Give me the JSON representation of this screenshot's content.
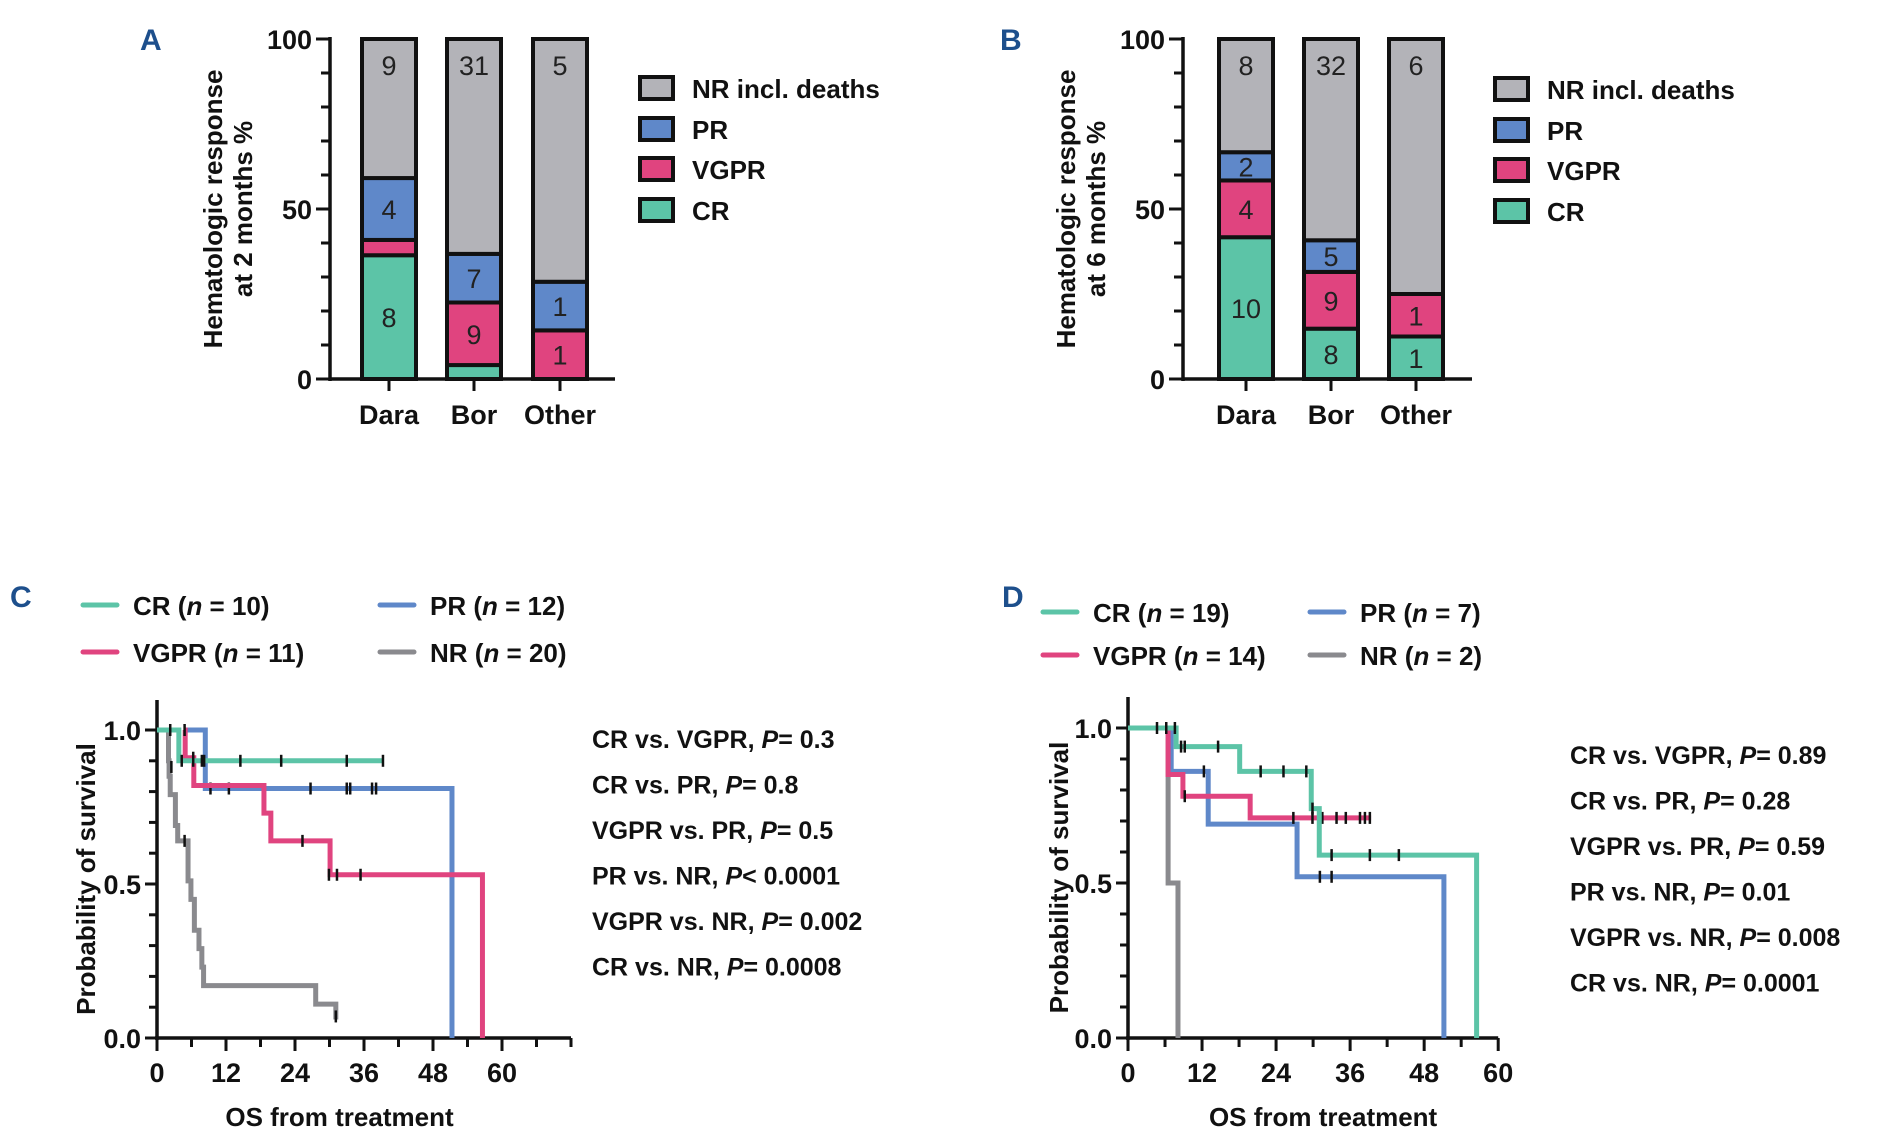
{
  "panels": {
    "A": {
      "letter": "A"
    },
    "B": {
      "letter": "B"
    },
    "C": {
      "letter": "C"
    },
    "D": {
      "letter": "D"
    }
  },
  "colors": {
    "NR": "#b3b3b8",
    "PR": "#5f88c9",
    "VGPR": "#e0447f",
    "CR": "#5cc4a7",
    "NR_line": "#8a8a8e",
    "letter": "#1d4f8c"
  },
  "chart_data": [
    {
      "id": "A",
      "type": "bar",
      "stacked": true,
      "title": "",
      "xlabel": "",
      "ylabel": "Hematologic response at 2 months %",
      "ylabel_lines": [
        "Hematologic response",
        "at 2 months %"
      ],
      "ylim": [
        0,
        100
      ],
      "yticks": [
        0,
        50,
        100
      ],
      "y_minor_step": 10,
      "categories": [
        "Dara",
        "Bor",
        "Other"
      ],
      "series": [
        {
          "name": "CR",
          "key": "CR",
          "values": [
            36.4,
            4.1,
            0
          ],
          "labels": [
            "8",
            "",
            ""
          ]
        },
        {
          "name": "VGPR",
          "key": "VGPR",
          "values": [
            4.5,
            18.4,
            14.3
          ],
          "labels": [
            "",
            "9",
            "1"
          ]
        },
        {
          "name": "PR",
          "key": "PR",
          "values": [
            18.2,
            14.3,
            14.3
          ],
          "labels": [
            "4",
            "7",
            "1"
          ]
        },
        {
          "name": "NR incl. deaths",
          "key": "NR",
          "values": [
            40.9,
            63.2,
            71.4
          ],
          "labels": [
            "9",
            "31",
            "5"
          ]
        }
      ],
      "legend": [
        "NR incl. deaths",
        "PR",
        "VGPR",
        "CR"
      ],
      "legend_position": "right"
    },
    {
      "id": "B",
      "type": "bar",
      "stacked": true,
      "title": "",
      "xlabel": "",
      "ylabel": "Hematologic response at 6 months %",
      "ylabel_lines": [
        "Hematologic response",
        "at 6 months %"
      ],
      "ylim": [
        0,
        100
      ],
      "yticks": [
        0,
        50,
        100
      ],
      "y_minor_step": 10,
      "categories": [
        "Dara",
        "Bor",
        "Other"
      ],
      "series": [
        {
          "name": "CR",
          "key": "CR",
          "values": [
            41.7,
            14.8,
            12.5
          ],
          "labels": [
            "10",
            "8",
            "1"
          ]
        },
        {
          "name": "VGPR",
          "key": "VGPR",
          "values": [
            16.7,
            16.7,
            12.5
          ],
          "labels": [
            "4",
            "9",
            "1"
          ]
        },
        {
          "name": "PR",
          "key": "PR",
          "values": [
            8.3,
            9.3,
            0
          ],
          "labels": [
            "2",
            "5",
            ""
          ]
        },
        {
          "name": "NR incl. deaths",
          "key": "NR",
          "values": [
            33.3,
            59.2,
            75.0
          ],
          "labels": [
            "8",
            "32",
            "6"
          ]
        }
      ],
      "legend": [
        "NR incl. deaths",
        "PR",
        "VGPR",
        "CR"
      ],
      "legend_position": "right"
    },
    {
      "id": "C",
      "type": "line",
      "subtype": "kaplan-meier step",
      "title": "",
      "xlabel": "OS from treatment",
      "ylabel": "Probability of survival",
      "xlim": [
        0,
        72
      ],
      "xticks": [
        0,
        12,
        24,
        36,
        48,
        60
      ],
      "x_minor_step": 6,
      "ylim": [
        0,
        1.1
      ],
      "yticks": [
        "0.0",
        "0.5",
        "1.0"
      ],
      "y_minor_step": 0.1,
      "legend_position": "top",
      "series": [
        {
          "name": "CR",
          "n": "10",
          "key": "CR",
          "steps": [
            [
              0,
              1.0
            ],
            [
              3.8,
              0.9
            ],
            [
              39.4,
              0.9
            ]
          ],
          "censors": [
            [
              2.3,
              1.0
            ],
            [
              4.8,
              1.0
            ],
            [
              4.3,
              0.9
            ],
            [
              6.3,
              0.9
            ],
            [
              7.8,
              0.9
            ],
            [
              8.2,
              0.9
            ],
            [
              14.5,
              0.9
            ],
            [
              21.6,
              0.9
            ],
            [
              33.0,
              0.9
            ],
            [
              39.3,
              0.9
            ]
          ]
        },
        {
          "name": "VGPR",
          "n": "11",
          "key": "VGPR",
          "steps": [
            [
              4.7,
              1.0
            ],
            [
              4.9,
              0.91
            ],
            [
              6.4,
              0.82
            ],
            [
              18.6,
              0.73
            ],
            [
              19.8,
              0.64
            ],
            [
              30.1,
              0.53
            ],
            [
              56.6,
              0.0
            ]
          ],
          "censors": [
            [
              6.3,
              0.91
            ],
            [
              25.3,
              0.64
            ],
            [
              29.9,
              0.53
            ],
            [
              31.3,
              0.53
            ],
            [
              35.4,
              0.53
            ]
          ]
        },
        {
          "name": "PR",
          "n": "12",
          "key": "PR",
          "steps": [
            [
              4.7,
              1.0
            ],
            [
              8.4,
              0.81
            ],
            [
              51.3,
              0.0
            ]
          ],
          "censors": [
            [
              9.3,
              0.81
            ],
            [
              12.5,
              0.81
            ],
            [
              26.7,
              0.81
            ],
            [
              33.0,
              0.81
            ],
            [
              33.6,
              0.81
            ],
            [
              37.4,
              0.81
            ],
            [
              38.1,
              0.81
            ]
          ]
        },
        {
          "name": "NR",
          "n": "20",
          "key": "NR",
          "steps": [
            [
              0,
              1.0
            ],
            [
              2.0,
              0.9
            ],
            [
              2.1,
              0.85
            ],
            [
              2.3,
              0.79
            ],
            [
              3.2,
              0.69
            ],
            [
              3.6,
              0.64
            ],
            [
              5.4,
              0.51
            ],
            [
              5.9,
              0.45
            ],
            [
              6.5,
              0.35
            ],
            [
              7.3,
              0.29
            ],
            [
              7.8,
              0.23
            ],
            [
              8.1,
              0.17
            ],
            [
              27.6,
              0.11
            ],
            [
              31.1,
              0.06
            ]
          ],
          "censors": [
            [
              2.5,
              0.88
            ],
            [
              4.8,
              0.64
            ],
            [
              31.1,
              0.07
            ]
          ]
        }
      ],
      "annotations": [
        "CR vs. VGPR, P = 0.3",
        "CR vs. PR, P = 0.8",
        "VGPR vs. PR, P = 0.5",
        "PR vs. NR, P < 0.0001",
        "VGPR vs. NR, P = 0.002",
        "CR vs. NR, P = 0.0008"
      ]
    },
    {
      "id": "D",
      "type": "line",
      "subtype": "kaplan-meier step",
      "title": "",
      "xlabel": "OS from treatment",
      "ylabel": "Probability of survival",
      "xlim": [
        0,
        60
      ],
      "xticks": [
        0,
        12,
        24,
        36,
        48,
        60
      ],
      "x_minor_step": 6,
      "ylim": [
        0,
        1.1
      ],
      "yticks": [
        "0.0",
        "0.5",
        "1.0"
      ],
      "y_minor_step": 0.1,
      "legend_position": "top",
      "series": [
        {
          "name": "CR",
          "n": "19",
          "key": "CR",
          "steps": [
            [
              0,
              1.0
            ],
            [
              7.8,
              0.94
            ],
            [
              18.1,
              0.86
            ],
            [
              29.7,
              0.74
            ],
            [
              31.0,
              0.59
            ],
            [
              56.5,
              0.0
            ]
          ],
          "censors": [
            [
              4.7,
              1.0
            ],
            [
              6.2,
              1.0
            ],
            [
              7.6,
              1.0
            ],
            [
              8.6,
              0.94
            ],
            [
              9.2,
              0.94
            ],
            [
              14.6,
              0.94
            ],
            [
              21.5,
              0.86
            ],
            [
              25.2,
              0.86
            ],
            [
              28.9,
              0.86
            ],
            [
              29.9,
              0.74
            ],
            [
              33.0,
              0.59
            ],
            [
              39.2,
              0.59
            ],
            [
              43.9,
              0.59
            ]
          ]
        },
        {
          "name": "VGPR",
          "n": "14",
          "key": "VGPR",
          "steps": [
            [
              6.3,
              1.0
            ],
            [
              6.5,
              0.85
            ],
            [
              8.9,
              0.78
            ],
            [
              19.8,
              0.71
            ],
            [
              39.4,
              0.71
            ]
          ],
          "censors": [
            [
              9.2,
              0.78
            ],
            [
              26.8,
              0.71
            ],
            [
              29.9,
              0.71
            ],
            [
              31.5,
              0.71
            ],
            [
              33.8,
              0.71
            ],
            [
              35.3,
              0.71
            ],
            [
              37.6,
              0.71
            ],
            [
              38.4,
              0.71
            ],
            [
              39.2,
              0.71
            ]
          ]
        },
        {
          "name": "PR",
          "n": "7",
          "key": "PR",
          "steps": [
            [
              6.8,
              1.0
            ],
            [
              7.0,
              0.86
            ],
            [
              13.0,
              0.69
            ],
            [
              27.4,
              0.52
            ],
            [
              51.2,
              0.0
            ]
          ],
          "censors": [
            [
              12.3,
              0.86
            ],
            [
              31.1,
              0.52
            ],
            [
              33.0,
              0.52
            ]
          ]
        },
        {
          "name": "NR",
          "n": "2",
          "key": "NR",
          "steps": [
            [
              6.3,
              1.0
            ],
            [
              6.5,
              0.5
            ],
            [
              8.1,
              0.0
            ]
          ],
          "censors": []
        }
      ],
      "annotations": [
        "CR vs. VGPR, P = 0.89",
        "CR vs. PR, P = 0.28",
        "VGPR vs. PR, P = 0.59",
        "PR vs. NR, P = 0.01",
        "VGPR vs. NR, P = 0.008",
        "CR vs. NR, P = 0.0001"
      ]
    }
  ]
}
